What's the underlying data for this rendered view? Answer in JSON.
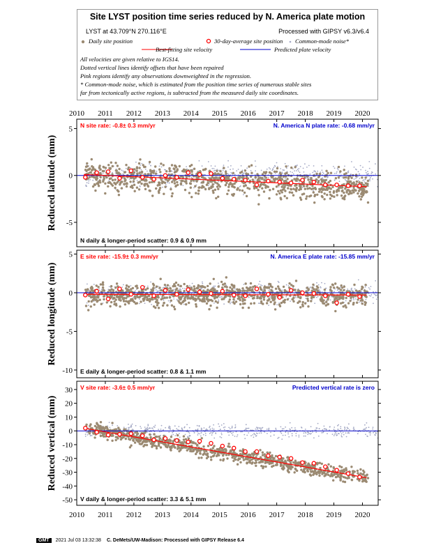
{
  "header": {
    "title": "Site LYST position time series reduced by N. America plate motion",
    "site_line": "LYST at 43.709°N 270.116°E",
    "processing": "Processed with GIPSY v6.3/v6.4",
    "legend": {
      "daily": "Daily site position",
      "avg30": "30-day-average site position",
      "common_mode": "Common-mode noise*",
      "best_fit": "Best-fitting site velocity",
      "predicted": "Predicted plate velocity"
    },
    "notes": [
      "All velocities are given relative to IGS14.",
      "Dotted vertical lines identify offsets that have been repaired",
      "Pink regions identify any observations downweighted in the regression.",
      "* Common-mode noise, which is estimated from the position time series of numerous stable sites",
      "far from tectonically active regions, is subtracted from the measured daily site coordinates."
    ]
  },
  "footer": {
    "logo": "GMT",
    "timestamp": "2021 Jul 03 13:32:38",
    "credit": "C. DeMets/UW-Madison: Processed with GIPSY Release 6.4"
  },
  "colors": {
    "daily": "#9b8a72",
    "common_mode": "#a3a8c4",
    "avg30_fill": "#ffffff",
    "avg30_stroke": "#ff0000",
    "best_fit": "#ff0000",
    "predicted": "#0000cc",
    "site_rate_text": "#ff0000",
    "plate_rate_text": "#0000cc"
  },
  "x_axis": {
    "range": [
      2010.0,
      2020.55
    ],
    "ticks": [
      "2010",
      "2011",
      "2012",
      "2013",
      "2014",
      "2015",
      "2016",
      "2017",
      "2018",
      "2019",
      "2020"
    ]
  },
  "panels": [
    {
      "ylabel": "Reduced latitude (mm)",
      "site_rate": "N site rate:  -0.8± 0.3 mm/yr",
      "plate_rate": "N. America N plate rate:  -0.68 mm/yr",
      "scatter": "N daily & longer-period scatter:   0.9 &   0.9 mm",
      "yticks": [
        "5",
        "0",
        "-5"
      ]
    },
    {
      "ylabel": "Reduced longitude (mm)",
      "site_rate": "E site rate:  -15.9± 0.3 mm/yr",
      "plate_rate": "N. America E plate rate:  -15.85 mm/yr",
      "scatter": "E daily & longer-period scatter:   0.8 &   1.1 mm",
      "yticks": [
        "5",
        "0",
        "-5",
        "-10"
      ]
    },
    {
      "ylabel": "Reduced vertical (mm)",
      "site_rate": "V site rate:  -3.6± 0.5 mm/yr",
      "plate_rate": "Predicted vertical rate is zero",
      "scatter": "V daily & longer-period scatter:   3.3 &   5.1 mm",
      "yticks": [
        "30",
        "20",
        "10",
        "0",
        "-10",
        "-20",
        "-30",
        "-40",
        "-50"
      ]
    }
  ],
  "chart_data": [
    {
      "type": "scatter",
      "title": "N site rate:  -0.8± 0.3 mm/yr",
      "xlabel": "",
      "ylabel": "Reduced latitude (mm)",
      "xlim": [
        2010.0,
        2020.55
      ],
      "ylim": [
        -7.6,
        6.0
      ],
      "yticks": [
        5,
        0,
        -5
      ],
      "grid": false,
      "reference_line_y": 0,
      "best_fit_line": {
        "x": [
          2010.25,
          2020.15
        ],
        "y": [
          0.1,
          -1.2
        ]
      },
      "series": [
        {
          "name": "30-day-average site position",
          "x": [
            2010.3,
            2010.7,
            2011.1,
            2011.5,
            2011.9,
            2012.3,
            2012.7,
            2013.1,
            2013.5,
            2013.9,
            2014.3,
            2014.7,
            2015.1,
            2015.5,
            2015.9,
            2016.3,
            2016.7,
            2017.1,
            2017.5,
            2017.9,
            2018.3,
            2018.7,
            2019.1,
            2019.5,
            2019.9
          ],
          "y": [
            -0.2,
            0.3,
            0.4,
            -0.3,
            0.5,
            -0.2,
            -0.4,
            0.0,
            -0.2,
            0.3,
            0.1,
            0.2,
            -0.3,
            -0.4,
            -0.5,
            -1.0,
            -0.6,
            -0.7,
            -0.8,
            -0.5,
            -0.7,
            -1.0,
            -1.0,
            -1.1,
            -1.1
          ]
        }
      ]
    },
    {
      "type": "scatter",
      "title": "E site rate:  -15.9± 0.3 mm/yr",
      "xlabel": "",
      "ylabel": "Reduced longitude (mm)",
      "xlim": [
        2010.0,
        2020.55
      ],
      "ylim": [
        -11.0,
        5.5
      ],
      "yticks": [
        5,
        0,
        -5,
        -10
      ],
      "grid": false,
      "reference_line_y": 0,
      "best_fit_line": {
        "x": [
          2010.25,
          2020.15
        ],
        "y": [
          -0.2,
          -0.3
        ]
      },
      "series": [
        {
          "name": "30-day-average site position",
          "x": [
            2010.3,
            2010.7,
            2011.1,
            2011.5,
            2011.9,
            2012.3,
            2012.7,
            2013.1,
            2013.5,
            2013.9,
            2014.3,
            2014.7,
            2015.1,
            2015.5,
            2015.9,
            2016.3,
            2016.7,
            2017.1,
            2017.5,
            2017.9,
            2018.3,
            2018.7,
            2019.1,
            2019.5,
            2019.9
          ],
          "y": [
            -0.3,
            0.2,
            -0.8,
            0.5,
            -0.2,
            0.7,
            -0.4,
            0.3,
            -0.2,
            0.4,
            0.1,
            -0.1,
            0.2,
            -0.3,
            -0.4,
            0.5,
            -0.2,
            -0.6,
            0.3,
            0.0,
            -0.1,
            -0.4,
            -1.3,
            -0.2,
            -0.5
          ]
        }
      ]
    },
    {
      "type": "scatter",
      "title": "V site rate:  -3.6± 0.5 mm/yr",
      "xlabel": "",
      "ylabel": "Reduced vertical (mm)",
      "xlim": [
        2010.0,
        2020.55
      ],
      "ylim": [
        -54.0,
        36.0
      ],
      "yticks": [
        30,
        20,
        10,
        0,
        -10,
        -20,
        -30,
        -40,
        -50
      ],
      "grid": false,
      "reference_line_y": 0,
      "best_fit_line": {
        "x": [
          2010.25,
          2020.15
        ],
        "y": [
          2.0,
          -34.0
        ]
      },
      "series": [
        {
          "name": "30-day-average site position",
          "x": [
            2010.3,
            2010.7,
            2011.1,
            2011.5,
            2011.9,
            2012.3,
            2012.7,
            2013.1,
            2013.5,
            2013.9,
            2014.3,
            2014.7,
            2015.1,
            2015.5,
            2015.9,
            2016.3,
            2016.7,
            2017.1,
            2017.5,
            2017.9,
            2018.3,
            2018.7,
            2019.1,
            2019.5,
            2019.9
          ],
          "y": [
            2.0,
            -1.0,
            -3.0,
            -2.5,
            -2.0,
            -3.5,
            -6.5,
            -5.5,
            -7.0,
            -8.0,
            -7.5,
            -9.0,
            -11.0,
            -12.5,
            -15.0,
            -15.0,
            -18.0,
            -19.0,
            -20.0,
            -23.0,
            -23.5,
            -26.0,
            -28.5,
            -31.0,
            -33.5
          ]
        }
      ]
    }
  ]
}
